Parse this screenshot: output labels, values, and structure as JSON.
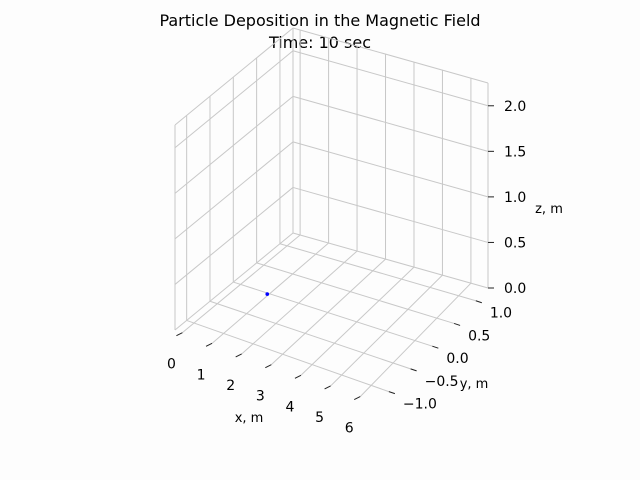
{
  "chart_data": {
    "type": "scatter",
    "projection": "3d",
    "title": "Particle Deposition in the Magnetic Field",
    "subtitle": "Time: 10 sec",
    "xlabel": "x, m",
    "ylabel": "y, m",
    "zlabel": "z, m",
    "x_ticks": [
      "0",
      "1",
      "2",
      "3",
      "4",
      "5",
      "6"
    ],
    "y_ticks": [
      "−1.0",
      "−0.5",
      "0.0",
      "0.5",
      "1.0"
    ],
    "z_ticks": [
      "0.0",
      "0.5",
      "1.0",
      "1.5",
      "2.0"
    ],
    "grid": true,
    "points": [
      {
        "x": 0.95,
        "y": -0.02,
        "z": 0.0,
        "color": "#0000ff"
      }
    ]
  },
  "colors": {
    "grid": "#c8c8c8",
    "point": "#0000ff",
    "background": "#fdfdfd"
  }
}
